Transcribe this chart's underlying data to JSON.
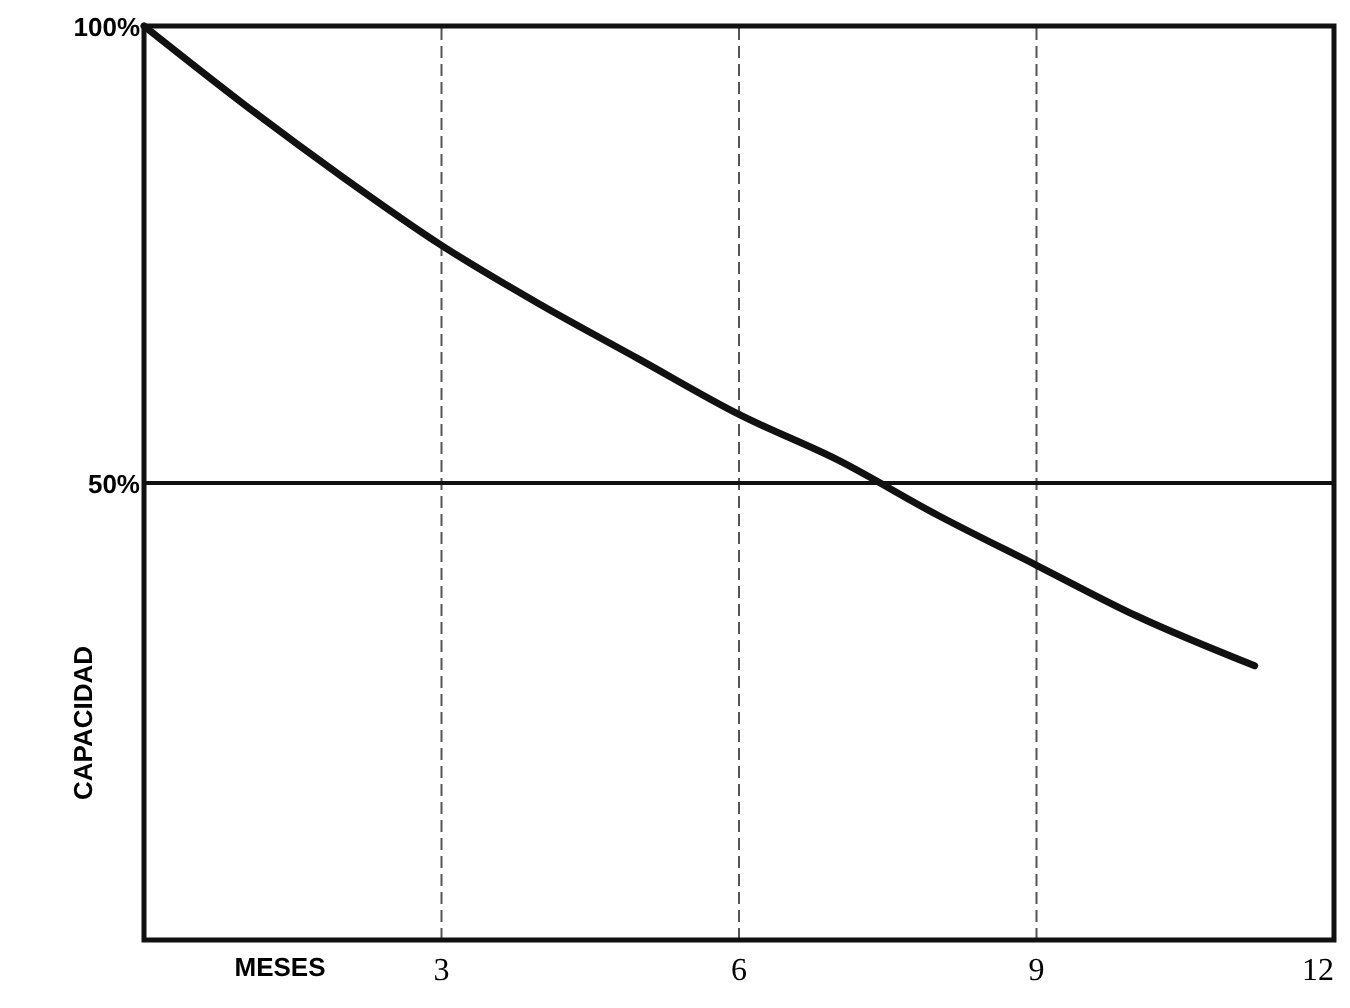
{
  "chart_data": {
    "type": "line",
    "xlabel": "MESES",
    "ylabel": "CAPACIDAD",
    "x": [
      0,
      1,
      2,
      3,
      4,
      5,
      6,
      7,
      8,
      9,
      10,
      11.2
    ],
    "series": [
      {
        "color": "#111111",
        "values": [
          100,
          91.5,
          83.5,
          76,
          69.5,
          63.5,
          57.5,
          52.5,
          46.5,
          41,
          35.5,
          30
        ]
      }
    ],
    "xlim": [
      0,
      12
    ],
    "xticks": [
      3,
      6,
      9,
      12
    ],
    "ylim": [
      0,
      100
    ],
    "yticks": [
      {
        "value": 50,
        "label": "50%"
      },
      {
        "value": 100,
        "label": "100%"
      }
    ],
    "ref_lines": [
      {
        "axis": "y",
        "value": 50,
        "color": "#111111"
      }
    ],
    "grid": "x",
    "marker": "none",
    "line_style": "solid"
  }
}
